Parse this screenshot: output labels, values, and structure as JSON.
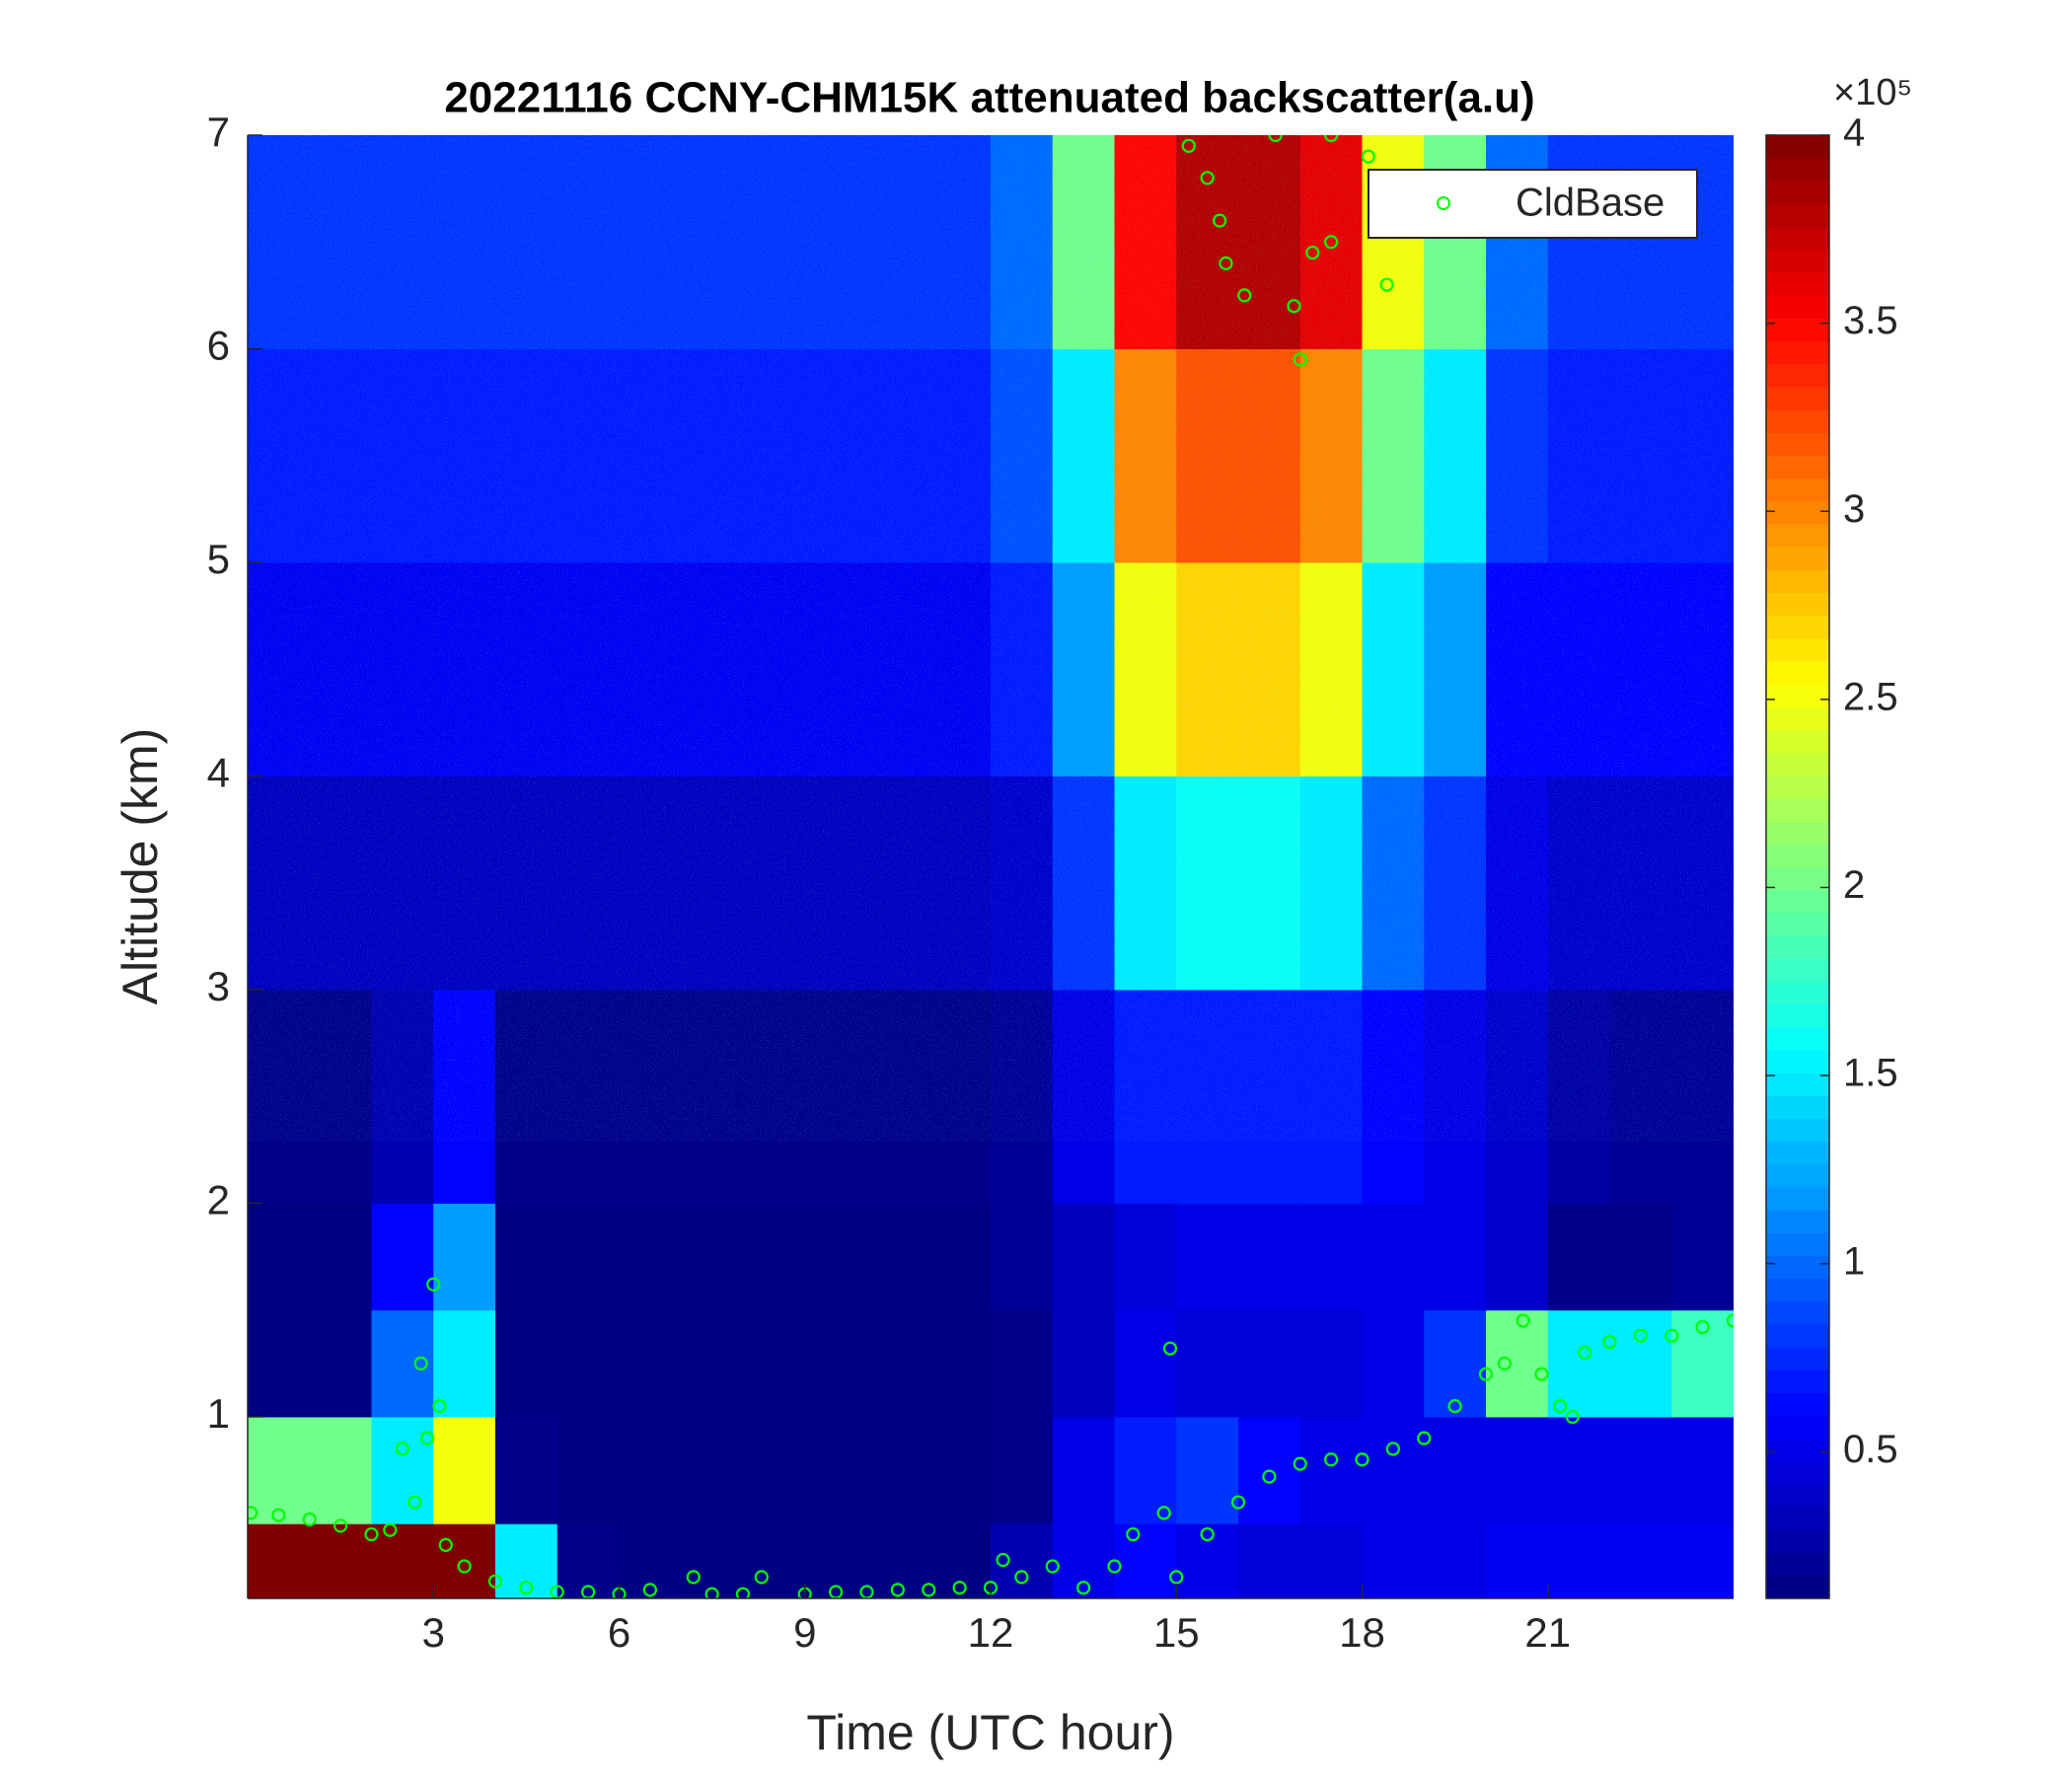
{
  "chart_data": {
    "type": "heatmap",
    "title": "20221116 CCNY-CHM15K attenuated backscatter(a.u)",
    "xlabel": "Time (UTC hour)",
    "ylabel": "Altitude (km)",
    "xlim": [
      0,
      24
    ],
    "ylim": [
      0.15,
      7
    ],
    "xticks": [
      3,
      6,
      9,
      12,
      15,
      18,
      21
    ],
    "yticks": [
      1,
      2,
      3,
      4,
      5,
      6,
      7
    ],
    "colormap": "jet",
    "clim": [
      0.11,
      4
    ],
    "cticks": [
      0.5,
      1,
      1.5,
      2,
      2.5,
      3,
      3.5,
      4
    ],
    "colorbar_scale": "×10⁵",
    "x_edges": [
      0,
      1,
      2,
      3,
      4,
      5,
      6,
      7,
      8,
      9,
      10,
      11,
      12,
      13,
      14,
      15,
      16,
      17,
      18,
      19,
      20,
      21,
      22,
      23,
      24
    ],
    "y_edges": [
      0.15,
      0.5,
      1,
      1.5,
      2,
      3,
      4,
      5,
      6,
      7
    ],
    "z": [
      [
        4,
        4,
        4,
        4,
        1.5,
        0.15,
        0.13,
        0.12,
        0.12,
        0.12,
        0.12,
        0.12,
        0.3,
        0.5,
        0.6,
        0.5,
        0.45,
        0.45,
        0.5,
        0.5,
        0.55,
        0.55,
        0.55,
        0.55
      ],
      [
        2,
        2,
        1.5,
        2.5,
        0.15,
        0.12,
        0.12,
        0.12,
        0.12,
        0.12,
        0.12,
        0.12,
        0.15,
        0.5,
        0.7,
        0.8,
        0.6,
        0.5,
        0.5,
        0.5,
        0.5,
        0.5,
        0.5,
        0.5
      ],
      [
        0.12,
        0.12,
        1,
        1.5,
        0.12,
        0.12,
        0.12,
        0.12,
        0.12,
        0.12,
        0.12,
        0.12,
        0.15,
        0.35,
        0.5,
        0.45,
        0.45,
        0.45,
        0.5,
        0.8,
        2,
        1.5,
        1.5,
        1.8
      ],
      [
        0.12,
        0.12,
        0.6,
        1.2,
        0.13,
        0.13,
        0.13,
        0.13,
        0.13,
        0.13,
        0.13,
        0.13,
        0.2,
        0.35,
        0.45,
        0.5,
        0.5,
        0.5,
        0.5,
        0.5,
        0.4,
        0.15,
        0.15,
        0.2
      ],
      [
        0.15,
        0.15,
        0.3,
        0.6,
        0.15,
        0.15,
        0.15,
        0.15,
        0.15,
        0.15,
        0.15,
        0.15,
        0.2,
        0.5,
        0.7,
        0.7,
        0.7,
        0.7,
        0.6,
        0.5,
        0.4,
        0.25,
        0.2,
        0.2
      ],
      [
        0.35,
        0.35,
        0.35,
        0.35,
        0.35,
        0.35,
        0.35,
        0.35,
        0.35,
        0.35,
        0.35,
        0.35,
        0.4,
        0.8,
        1.5,
        1.6,
        1.6,
        1.5,
        1,
        0.8,
        0.5,
        0.4,
        0.4,
        0.4
      ],
      [
        0.55,
        0.55,
        0.55,
        0.55,
        0.55,
        0.55,
        0.55,
        0.55,
        0.55,
        0.55,
        0.55,
        0.55,
        0.7,
        1.2,
        2.5,
        2.7,
        2.7,
        2.5,
        1.5,
        1.2,
        0.6,
        0.6,
        0.6,
        0.6
      ],
      [
        0.7,
        0.7,
        0.7,
        0.7,
        0.7,
        0.7,
        0.7,
        0.7,
        0.7,
        0.7,
        0.7,
        0.7,
        0.9,
        1.5,
        3,
        3.2,
        3.2,
        3,
        2,
        1.5,
        0.8,
        0.7,
        0.7,
        0.7
      ],
      [
        0.8,
        0.8,
        0.8,
        0.8,
        0.8,
        0.8,
        0.8,
        0.8,
        0.8,
        0.8,
        0.8,
        0.8,
        1,
        2,
        3.5,
        3.8,
        3.8,
        3.6,
        2.5,
        2,
        1,
        0.8,
        0.8,
        0.8
      ]
    ],
    "overlay": {
      "type": "scatter",
      "name": "CldBase",
      "color": "#00ff00",
      "x": [
        0.05,
        0.5,
        1,
        1.5,
        2,
        2.3,
        2.5,
        2.7,
        2.8,
        2.9,
        3,
        3.1,
        3.2,
        3.5,
        4,
        4.5,
        5,
        5.5,
        6,
        6.5,
        7.2,
        7.5,
        8,
        8.3,
        9,
        9.5,
        10,
        10.5,
        11,
        11.5,
        12,
        12.2,
        12.5,
        13,
        13.5,
        14,
        14.3,
        14.8,
        14.9,
        15,
        15.5,
        16,
        16.5,
        17,
        17.5,
        18,
        18.5,
        19,
        19.5,
        20,
        20.3,
        20.6,
        20.9,
        21.2,
        21.4,
        21.6,
        22,
        22.5,
        23,
        23.5,
        24,
        15.2,
        15.5,
        15.7,
        15.8,
        16.1,
        16.6,
        16.9,
        17,
        17.2,
        17.5,
        17.5,
        18.1,
        18.4
      ],
      "y": [
        0.55,
        0.54,
        0.52,
        0.49,
        0.45,
        0.47,
        0.85,
        0.6,
        1.25,
        0.9,
        1.62,
        1.05,
        0.4,
        0.3,
        0.23,
        0.2,
        0.18,
        0.18,
        0.17,
        0.19,
        0.25,
        0.17,
        0.17,
        0.25,
        0.17,
        0.18,
        0.18,
        0.19,
        0.19,
        0.2,
        0.2,
        0.33,
        0.25,
        0.3,
        0.2,
        0.3,
        0.45,
        0.55,
        1.32,
        0.25,
        0.45,
        0.6,
        0.72,
        0.78,
        0.8,
        0.8,
        0.85,
        0.9,
        1.05,
        1.2,
        1.25,
        1.45,
        1.2,
        1.05,
        1,
        1.3,
        1.35,
        1.38,
        1.38,
        1.42,
        1.45,
        6.95,
        6.8,
        6.6,
        6.4,
        6.25,
        7,
        6.2,
        5.95,
        6.45,
        7,
        6.5,
        6.9,
        6.3
      ]
    },
    "legend": "upper right"
  }
}
